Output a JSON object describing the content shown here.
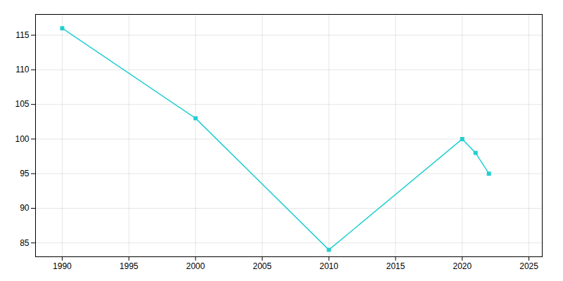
{
  "chart_data": {
    "type": "line",
    "x": [
      1990,
      2000,
      2010,
      2020,
      2021,
      2022
    ],
    "values": [
      116,
      103,
      84,
      100,
      98,
      95
    ],
    "color": "#22CED1",
    "marker": "square",
    "xlim": [
      1988,
      2026
    ],
    "ylim": [
      83,
      118
    ],
    "xticks": [
      1990,
      1995,
      2000,
      2005,
      2010,
      2015,
      2020,
      2025
    ],
    "yticks": [
      85,
      90,
      95,
      100,
      105,
      110,
      115
    ],
    "grid": true
  }
}
